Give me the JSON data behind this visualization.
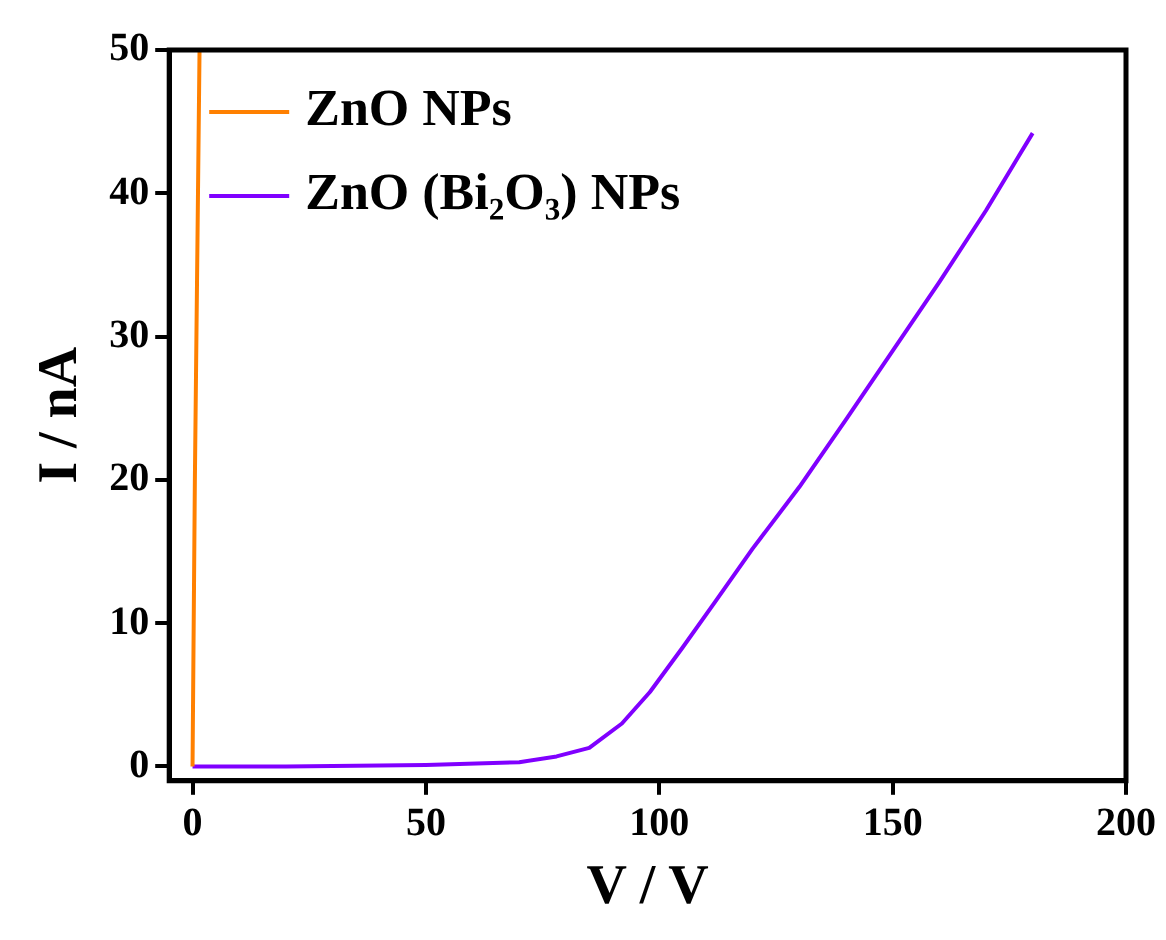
{
  "chart_data": {
    "type": "line",
    "xlabel": "V / V",
    "ylabel": "I / nA",
    "xlim": [
      -5,
      200
    ],
    "xticks": [
      0,
      50,
      100,
      150,
      200
    ],
    "ylim": [
      -1,
      50
    ],
    "yticks": [
      0,
      10,
      20,
      30,
      40,
      50
    ],
    "grid": false,
    "legend": "top left",
    "marker": "none",
    "line_style": "solid",
    "series": [
      {
        "name": "ZnO NPs",
        "color": "#ff8000",
        "x": [
          0,
          0.5,
          1.5
        ],
        "values": [
          0,
          20,
          50
        ]
      },
      {
        "name": "ZnO (Bi₂O₃) NPs",
        "color": "#8000ff",
        "x": [
          0,
          20,
          50,
          70,
          78,
          85,
          92,
          98,
          105,
          112,
          120,
          130,
          140,
          150,
          160,
          170,
          180
        ],
        "values": [
          0,
          0,
          0.1,
          0.3,
          0.7,
          1.3,
          3,
          5.2,
          8.3,
          11.5,
          15.2,
          19.5,
          24.2,
          29,
          33.8,
          38.8,
          44.2
        ]
      }
    ]
  }
}
